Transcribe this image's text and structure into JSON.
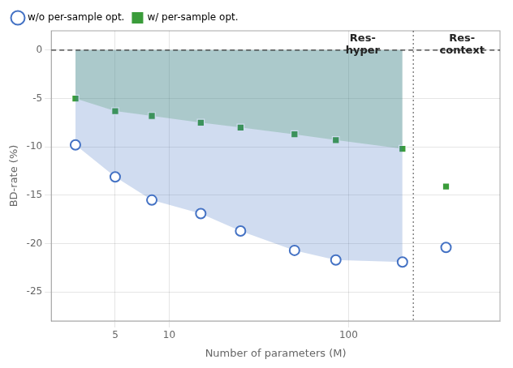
{
  "chart_data": {
    "type": "scatter",
    "xlabel": "Number of parameters (M)",
    "ylabel": "BD-rate (%)",
    "log": "x",
    "xlim": [
      2.2,
      700
    ],
    "xticks": [
      5,
      10,
      100
    ],
    "ylim": [
      -28,
      2
    ],
    "yticks": [
      -25,
      -20,
      -15,
      -10,
      -5,
      0
    ],
    "grid": true,
    "legend": "upper left",
    "series": [
      {
        "name": "w/o per-sample opt.",
        "type": "area",
        "color": "#4472C4",
        "marker": "circle_open",
        "x": [
          3.0,
          5.0,
          8.0,
          15.0,
          25.0,
          50.0,
          85.0,
          200.0
        ],
        "values": [
          -9.8,
          -13.1,
          -15.5,
          -16.9,
          -18.7,
          -20.7,
          -21.7,
          -21.9
        ]
      },
      {
        "type": "scatter",
        "color": "#4472C4",
        "marker": "circle_open",
        "x": [
          350.0
        ],
        "values": [
          -20.4
        ]
      },
      {
        "name": "w/ per-sample opt.",
        "type": "area",
        "color": "#3a9c3a",
        "marker": "square",
        "x": [
          3.0,
          5.0,
          8.0,
          15.0,
          25.0,
          50.0,
          85.0,
          200.0
        ],
        "values": [
          -5.0,
          -6.3,
          -6.8,
          -7.5,
          -8.0,
          -8.7,
          -9.3,
          -10.2
        ]
      },
      {
        "type": "scatter",
        "color": "#3a9c3a",
        "marker": "square",
        "x": [
          350.0
        ],
        "values": [
          -14.1
        ]
      }
    ],
    "reference_lines": {
      "x": [
        230
      ],
      "y": [
        0
      ]
    },
    "annotations": [
      {
        "text": "Res-\nhyper",
        "x": 120,
        "y": 1.7
      },
      {
        "text": "Res-\ncontext",
        "x": 430,
        "y": 1.7
      }
    ]
  }
}
